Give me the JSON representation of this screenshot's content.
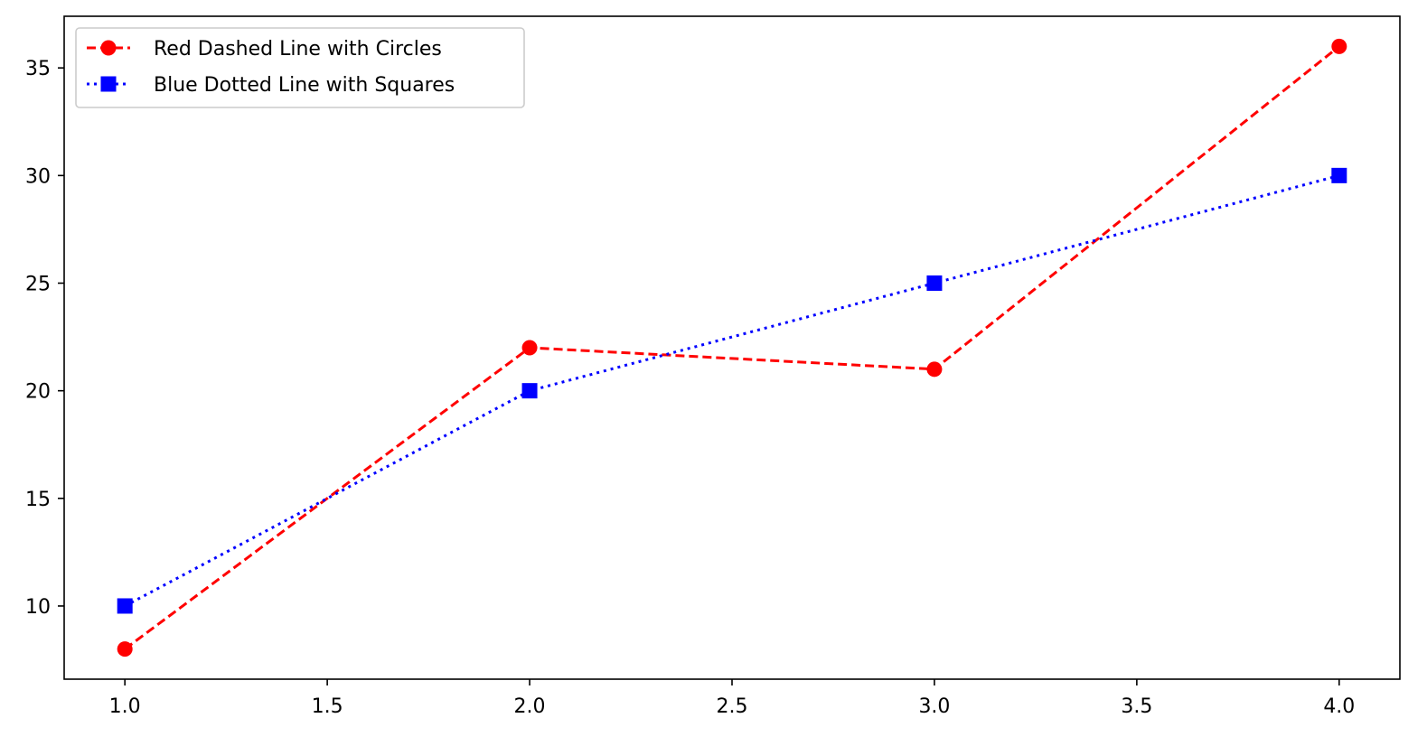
{
  "chart_data": {
    "type": "line",
    "title": "",
    "xlabel": "",
    "ylabel": "",
    "x": [
      1.0,
      2.0,
      3.0,
      4.0
    ],
    "xlim": [
      0.85,
      4.15
    ],
    "ylim": [
      6.6,
      37.4
    ],
    "x_ticks": [
      1.0,
      1.5,
      2.0,
      2.5,
      3.0,
      3.5,
      4.0
    ],
    "x_tick_labels": [
      "1.0",
      "1.5",
      "2.0",
      "2.5",
      "3.0",
      "3.5",
      "4.0"
    ],
    "y_ticks": [
      10,
      15,
      20,
      25,
      30,
      35
    ],
    "y_tick_labels": [
      "10",
      "15",
      "20",
      "25",
      "30",
      "35"
    ],
    "grid": false,
    "legend_position": "top-left",
    "series": [
      {
        "name": "Red Dashed Line with Circles",
        "values": [
          8,
          22,
          21,
          36
        ],
        "color": "#ff0000",
        "line_style": "dashed",
        "marker": "circle"
      },
      {
        "name": "Blue Dotted Line with Squares",
        "values": [
          10,
          20,
          25,
          30
        ],
        "color": "#0000ff",
        "line_style": "dotted",
        "marker": "square"
      }
    ]
  }
}
